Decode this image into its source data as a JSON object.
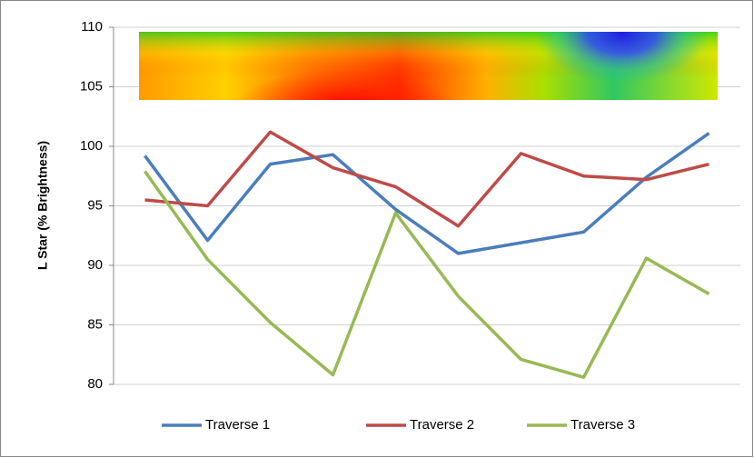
{
  "chart_data": {
    "type": "line",
    "y_label": "L Star (% Brightness)",
    "categories": [
      null,
      null,
      null,
      null,
      null,
      null,
      null,
      null,
      null,
      null
    ],
    "ylim": [
      80,
      110
    ],
    "yticks": [
      80,
      85,
      90,
      95,
      100,
      105,
      110
    ],
    "grid": true,
    "legend": "bottom",
    "series": [
      {
        "name": "Traverse 1",
        "color": "#4a7ebb",
        "values": [
          99.2,
          92.1,
          98.5,
          99.3,
          94.7,
          91.0,
          91.9,
          92.8,
          97.4,
          101.1
        ]
      },
      {
        "name": "Traverse 2",
        "color": "#be4b48",
        "values": [
          95.5,
          95.0,
          101.2,
          98.2,
          96.6,
          93.3,
          99.4,
          97.5,
          97.2,
          98.5
        ]
      },
      {
        "name": "Traverse 3",
        "color": "#98b954",
        "values": [
          97.9,
          90.5,
          85.2,
          80.8,
          94.4,
          87.4,
          82.1,
          80.6,
          90.6,
          87.6
        ]
      }
    ]
  }
}
